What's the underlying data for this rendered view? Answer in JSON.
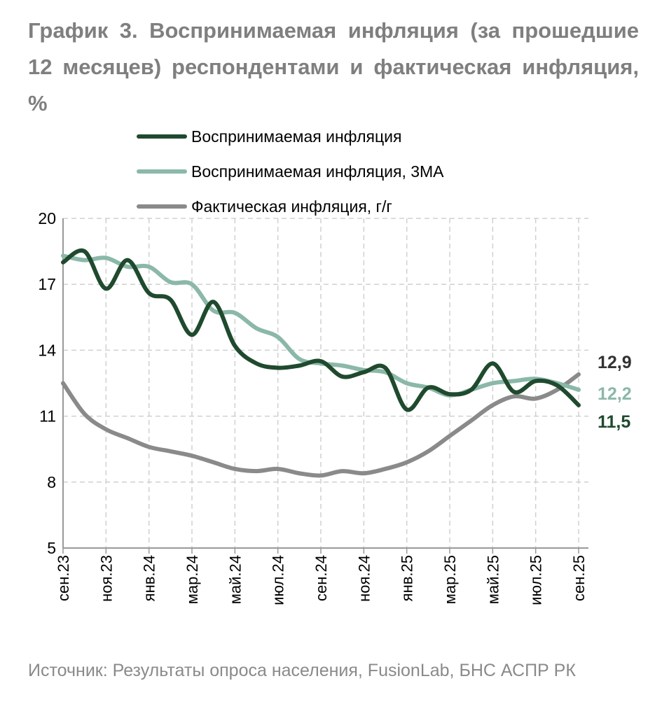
{
  "title": "График 3. Воспринимаемая инфляция (за прошедшие 12 месяцев) респондентами и фактическая инфляция, %",
  "source": "Источник: Результаты опроса населения, FusionLab, БНС АСПР РК",
  "chart_data": {
    "type": "line",
    "title": "График 3. Воспринимаемая инфляция (за прошедшие 12 месяцев) респондентами и фактическая инфляция, %",
    "xlabel": "",
    "ylabel": "%",
    "ylim": [
      5,
      20
    ],
    "yticks": [
      5,
      8,
      11,
      14,
      17,
      20
    ],
    "grid": true,
    "legend_position": "top",
    "x": [
      "сен.23",
      "окт.23",
      "ноя.23",
      "дек.23",
      "янв.24",
      "фев.24",
      "мар.24",
      "апр.24",
      "май.24",
      "июн.24",
      "июл.24",
      "авг.24",
      "сен.24",
      "окт.24",
      "ноя.24",
      "дек.24",
      "янв.25",
      "фев.25",
      "мар.25",
      "апр.25",
      "май.25",
      "июн.25",
      "июл.25",
      "авг.25",
      "сен.25"
    ],
    "xtick_labels": [
      "сен.23",
      "ноя.23",
      "янв.24",
      "мар.24",
      "май.24",
      "июл.24",
      "сен.24",
      "ноя.24",
      "янв.25",
      "мар.25",
      "май.25",
      "июл.25",
      "сен.25"
    ],
    "series": [
      {
        "name": "Воспринимаемая инфляция",
        "color": "#1f4a2e",
        "values": [
          18.0,
          18.5,
          16.8,
          18.1,
          16.6,
          16.3,
          14.7,
          16.2,
          14.2,
          13.4,
          13.2,
          13.3,
          13.5,
          12.8,
          13.0,
          13.2,
          11.3,
          12.3,
          12.0,
          12.2,
          13.4,
          12.1,
          12.6,
          12.4,
          11.5
        ],
        "end_label": "11,5"
      },
      {
        "name": "Воспринимаемая инфляция, 3МА",
        "color": "#8bb8a8",
        "values": [
          18.3,
          18.1,
          18.2,
          17.8,
          17.8,
          17.1,
          17.0,
          15.8,
          15.7,
          15.0,
          14.6,
          13.6,
          13.4,
          13.3,
          13.1,
          13.0,
          12.5,
          12.3,
          11.95,
          12.2,
          12.5,
          12.6,
          12.7,
          12.5,
          12.2
        ],
        "end_label": "12,2"
      },
      {
        "name": "Фактическая инфляция, г/г",
        "color": "#8a8a8a",
        "values": [
          12.5,
          11.1,
          10.4,
          10.0,
          9.6,
          9.4,
          9.2,
          8.9,
          8.6,
          8.5,
          8.6,
          8.4,
          8.3,
          8.5,
          8.4,
          8.6,
          8.9,
          9.4,
          10.1,
          10.8,
          11.5,
          11.9,
          11.8,
          12.2,
          12.9
        ],
        "end_label": "12,9"
      }
    ]
  }
}
